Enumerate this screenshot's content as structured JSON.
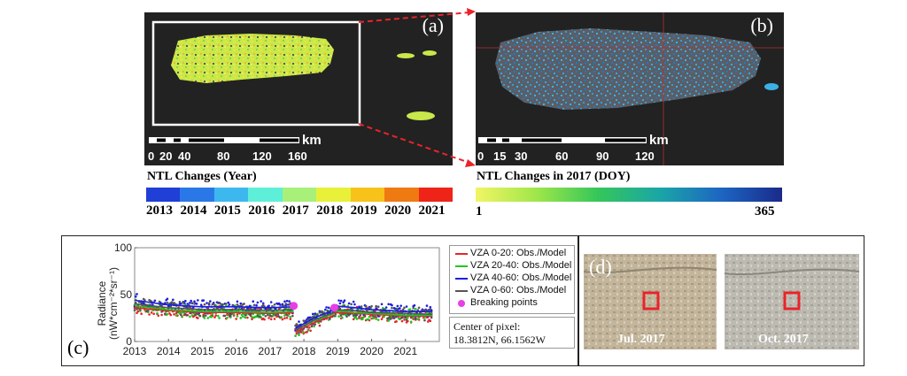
{
  "panels": {
    "a": {
      "letter": "(a)",
      "scale_km": "km",
      "scale_ticks": [
        "0",
        "20",
        "40",
        "80",
        "120",
        "160"
      ]
    },
    "b": {
      "letter": "(b)",
      "scale_km": "km",
      "scale_ticks": [
        "0",
        "15",
        "30",
        "60",
        "90",
        "120"
      ]
    },
    "c": {
      "letter": "(c)"
    },
    "d": {
      "letter": "(d)",
      "captions": [
        "Jul. 2017",
        "Oct. 2017"
      ]
    }
  },
  "colorbar_year": {
    "title": "NTL Changes (Year)",
    "labels": [
      "2013",
      "2014",
      "2015",
      "2016",
      "2017",
      "2018",
      "2019",
      "2020",
      "2021"
    ],
    "colors": [
      "#1f3fd6",
      "#2a78e8",
      "#3db8ef",
      "#5eefd8",
      "#a8f07a",
      "#e8f03a",
      "#f7c21a",
      "#f07a12",
      "#ee2418"
    ]
  },
  "colorbar_doy": {
    "title": "NTL Changes in 2017 (DOY)",
    "min_label": "1",
    "max_label": "365",
    "colors": [
      "#f2f564",
      "#9fe64a",
      "#34c65a",
      "#1aa6a6",
      "#1d66c2",
      "#1a2a8a"
    ]
  },
  "chart_data": {
    "type": "scatter",
    "ylabel": "Radiance (nW*cm⁻²*sr⁻¹)",
    "ylim": [
      0,
      100
    ],
    "yticks": [
      "0",
      "50",
      "100"
    ],
    "xticks": [
      "2013",
      "2014",
      "2015",
      "2016",
      "2017",
      "2018",
      "2019",
      "2020",
      "2021"
    ],
    "xlim": [
      2013,
      2022
    ],
    "series": [
      {
        "name": "VZA 0-20: Obs./Model",
        "color": "#e8242a",
        "segments": [
          {
            "x": [
              2013.0,
              2014.0,
              2015.0,
              2016.0,
              2017.0,
              2017.7
            ],
            "y": [
              36,
              33,
              31,
              31,
              30,
              31
            ]
          },
          {
            "x": [
              2017.75,
              2018.3,
              2018.9
            ],
            "y": [
              10,
              20,
              28
            ]
          },
          {
            "x": [
              2018.9,
              2019.5,
              2020.0,
              2021.0,
              2021.8
            ],
            "y": [
              31,
              30,
              29,
              27,
              27
            ]
          }
        ]
      },
      {
        "name": "VZA 20-40: Obs./Model",
        "color": "#22c422",
        "segments": [
          {
            "x": [
              2013.0,
              2014.0,
              2015.0,
              2016.0,
              2017.0,
              2017.7
            ],
            "y": [
              38,
              34,
              32,
              32,
              31,
              32
            ]
          },
          {
            "x": [
              2017.75,
              2018.3,
              2018.9
            ],
            "y": [
              12,
              22,
              30
            ]
          },
          {
            "x": [
              2018.9,
              2019.5,
              2020.0,
              2021.0,
              2021.8
            ],
            "y": [
              33,
              31,
              30,
              28,
              28
            ]
          }
        ]
      },
      {
        "name": "VZA 40-60: Obs./Model",
        "color": "#1c1ce0",
        "segments": [
          {
            "x": [
              2013.0,
              2014.0,
              2015.0,
              2016.0,
              2017.0,
              2017.7
            ],
            "y": [
              44,
              39,
              37,
              37,
              36,
              37
            ]
          },
          {
            "x": [
              2017.75,
              2018.3,
              2018.9
            ],
            "y": [
              14,
              25,
              34
            ]
          },
          {
            "x": [
              2018.9,
              2019.5,
              2020.0,
              2021.0,
              2021.8
            ],
            "y": [
              38,
              36,
              34,
              32,
              32
            ]
          }
        ]
      },
      {
        "name": "VZA 0-60: Obs./Model",
        "color": "#555555",
        "segments": [
          {
            "x": [
              2013.0,
              2014.0,
              2015.0,
              2016.0,
              2017.0,
              2017.7
            ],
            "y": [
              40,
              36,
              34,
              34,
              33,
              34
            ]
          },
          {
            "x": [
              2017.75,
              2018.3,
              2018.9
            ],
            "y": [
              12,
              23,
              31
            ]
          },
          {
            "x": [
              2018.9,
              2019.5,
              2020.0,
              2021.0,
              2021.8
            ],
            "y": [
              34,
              33,
              31,
              30,
              29
            ]
          }
        ]
      }
    ],
    "breaking_points": {
      "name": "Breaking points",
      "color": "#e83ee8",
      "x": [
        2017.7,
        2018.9
      ],
      "y": [
        38,
        36
      ]
    },
    "annotation": {
      "line1": "Center of pixel:",
      "line2": "18.3812N, 66.1562W"
    }
  }
}
